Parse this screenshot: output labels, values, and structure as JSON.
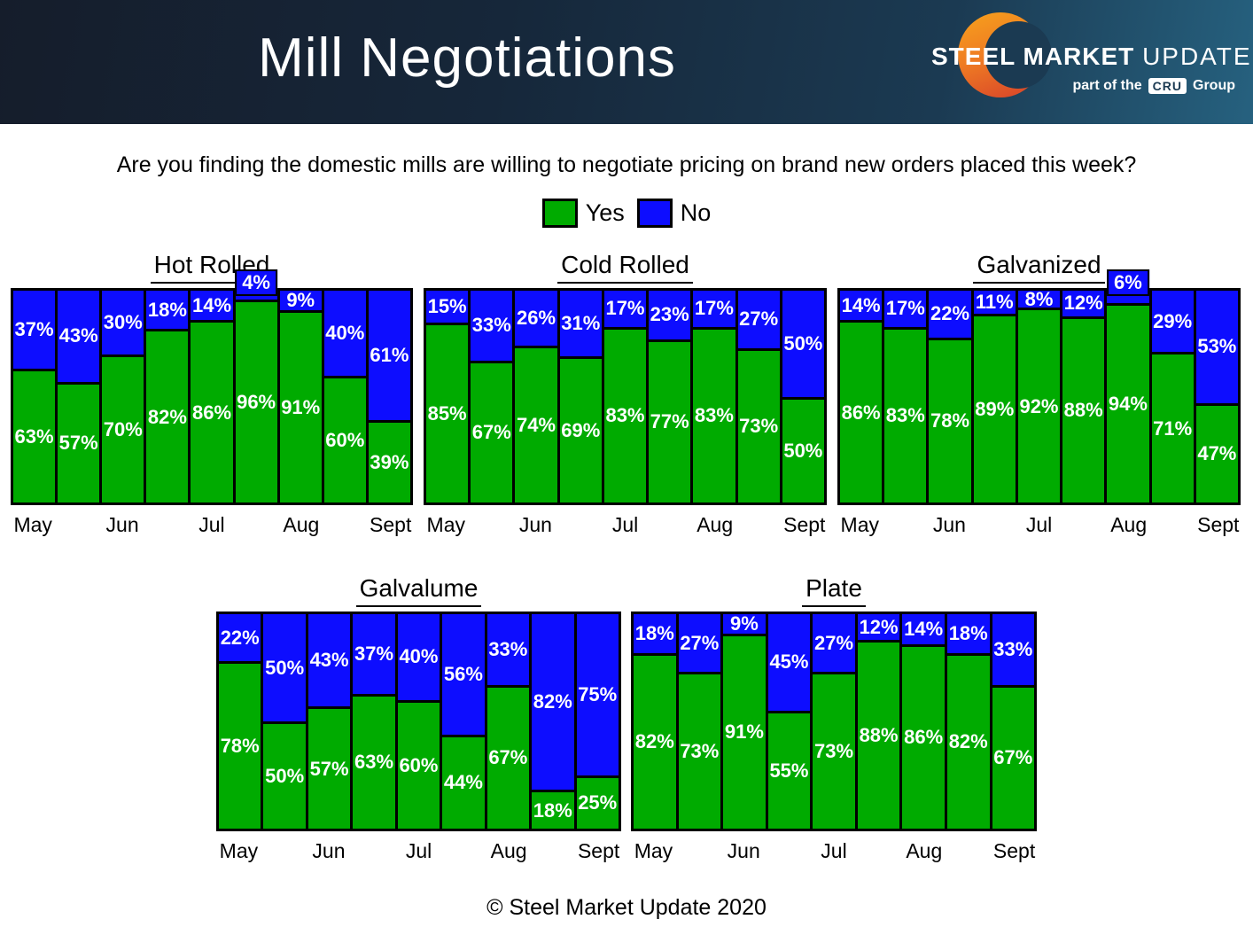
{
  "header": {
    "title": "Mill Negotiations",
    "logo": {
      "line1_bold": "STEEL MARKET",
      "line1_light": "UPDATE",
      "line2_prefix": "part of the",
      "line2_badge": "CRU",
      "line2_suffix": "Group"
    }
  },
  "question": "Are you finding the domestic mills are willing to negotiate pricing on brand new orders placed this week?",
  "legend": {
    "yes_label": "Yes",
    "no_label": "No"
  },
  "colors": {
    "yes": "#00AB00",
    "no": "#0D0DFF",
    "header_dark": "#151d2b",
    "header_light": "#26617f"
  },
  "footer": "© Steel Market Update 2020",
  "chart_data": [
    {
      "type": "bar",
      "stacked": true,
      "title": "Hot Rolled",
      "x_tick_labels": [
        "May",
        "Jun",
        "Jul",
        "Aug",
        "Sept"
      ],
      "ylim": [
        0,
        100
      ],
      "series": [
        {
          "name": "Yes",
          "color": "#00AB00",
          "values": [
            63,
            57,
            70,
            82,
            86,
            96,
            91,
            60,
            39
          ]
        },
        {
          "name": "No",
          "color": "#0D0DFF",
          "values": [
            37,
            43,
            30,
            18,
            14,
            4,
            9,
            40,
            61
          ]
        }
      ]
    },
    {
      "type": "bar",
      "stacked": true,
      "title": "Cold Rolled",
      "x_tick_labels": [
        "May",
        "Jun",
        "Jul",
        "Aug",
        "Sept"
      ],
      "ylim": [
        0,
        100
      ],
      "series": [
        {
          "name": "Yes",
          "color": "#00AB00",
          "values": [
            85,
            67,
            74,
            69,
            83,
            77,
            83,
            73,
            50
          ]
        },
        {
          "name": "No",
          "color": "#0D0DFF",
          "values": [
            15,
            33,
            26,
            31,
            17,
            23,
            17,
            27,
            50
          ]
        }
      ]
    },
    {
      "type": "bar",
      "stacked": true,
      "title": "Galvanized",
      "x_tick_labels": [
        "May",
        "Jun",
        "Jul",
        "Aug",
        "Sept"
      ],
      "ylim": [
        0,
        100
      ],
      "series": [
        {
          "name": "Yes",
          "color": "#00AB00",
          "values": [
            86,
            83,
            78,
            89,
            92,
            88,
            94,
            71,
            47
          ]
        },
        {
          "name": "No",
          "color": "#0D0DFF",
          "values": [
            14,
            17,
            22,
            11,
            8,
            12,
            6,
            29,
            53
          ]
        }
      ]
    },
    {
      "type": "bar",
      "stacked": true,
      "title": "Galvalume",
      "x_tick_labels": [
        "May",
        "Jun",
        "Jul",
        "Aug",
        "Sept"
      ],
      "ylim": [
        0,
        100
      ],
      "series": [
        {
          "name": "Yes",
          "color": "#00AB00",
          "values": [
            78,
            50,
            57,
            63,
            60,
            44,
            67,
            18,
            25
          ]
        },
        {
          "name": "No",
          "color": "#0D0DFF",
          "values": [
            22,
            50,
            43,
            37,
            40,
            56,
            33,
            82,
            75
          ]
        }
      ]
    },
    {
      "type": "bar",
      "stacked": true,
      "title": "Plate",
      "x_tick_labels": [
        "May",
        "Jun",
        "Jul",
        "Aug",
        "Sept"
      ],
      "ylim": [
        0,
        100
      ],
      "series": [
        {
          "name": "Yes",
          "color": "#00AB00",
          "values": [
            82,
            73,
            91,
            55,
            73,
            88,
            86,
            82,
            67
          ]
        },
        {
          "name": "No",
          "color": "#0D0DFF",
          "values": [
            18,
            27,
            9,
            45,
            27,
            12,
            14,
            18,
            33
          ]
        }
      ]
    }
  ]
}
